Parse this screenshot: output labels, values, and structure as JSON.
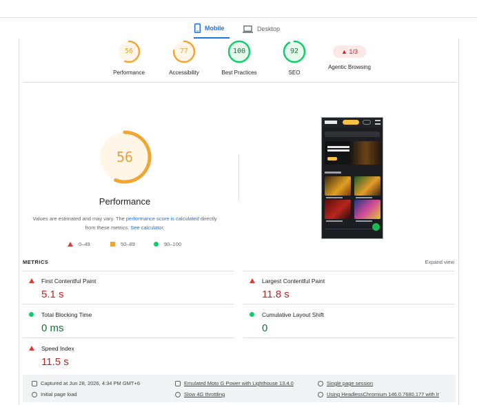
{
  "tabs": [
    {
      "label": "Mobile",
      "icon": "smartphone-icon",
      "active": true
    },
    {
      "label": "Desktop",
      "icon": "laptop-icon",
      "active": false
    }
  ],
  "colors": {
    "pass": "#0cce6b",
    "average": "#ffa400",
    "fail": "#ff4e42",
    "accent": "#1a73e8"
  },
  "categories": [
    {
      "score": "56",
      "label": "Performance",
      "level": 0.56,
      "status": "average"
    },
    {
      "score": "77",
      "label": "Accessibility",
      "level": 0.77,
      "status": "average"
    },
    {
      "score": "100",
      "label": "Best Practices",
      "level": 1.0,
      "status": "pass"
    },
    {
      "score": "92",
      "label": "SEO",
      "level": 0.92,
      "status": "pass"
    },
    {
      "score": "1/3",
      "label": "Agentic Browsing",
      "icon": "warning-triangle-icon",
      "status": "fail"
    }
  ],
  "main_gauge": {
    "score": "56",
    "level": 0.56,
    "title": "Performance"
  },
  "note": {
    "text1": "Values are estimated and may vary. The ",
    "link1": "performance score is calculated",
    "text2": " directly from these metrics. ",
    "link2": "See calculator",
    "text3": "."
  },
  "legend": [
    {
      "label": "0–49",
      "shape": "triangle",
      "color": "#e53935"
    },
    {
      "label": "50–89",
      "shape": "square",
      "color": "#f2a531"
    },
    {
      "label": "90–100",
      "shape": "circle",
      "color": "#0cce6b"
    }
  ],
  "metrics": {
    "title": "METRICS",
    "expand": "Expand view",
    "items": [
      {
        "name": "First Contentful Paint",
        "value": "5.1 s",
        "status": "fail"
      },
      {
        "name": "Largest Contentful Paint",
        "value": "11.8 s",
        "status": "fail"
      },
      {
        "name": "Total Blocking Time",
        "value": "0 ms",
        "status": "pass"
      },
      {
        "name": "Cumulative Layout Shift",
        "value": "0",
        "status": "pass"
      },
      {
        "name": "Speed Index",
        "value": "11.5 s",
        "status": "fail"
      }
    ]
  },
  "footer": {
    "captured": "Captured at Jun 28, 2026, 4:34 PM GMT+6",
    "load": "Initial page load",
    "device": "Emulated Moto G Power with Lighthouse 13.4.0",
    "throttle": "Slow 4G throttling",
    "session": "Single page session",
    "browser": "Using HeadlessChromium 146.0.7680.177 with lr"
  }
}
